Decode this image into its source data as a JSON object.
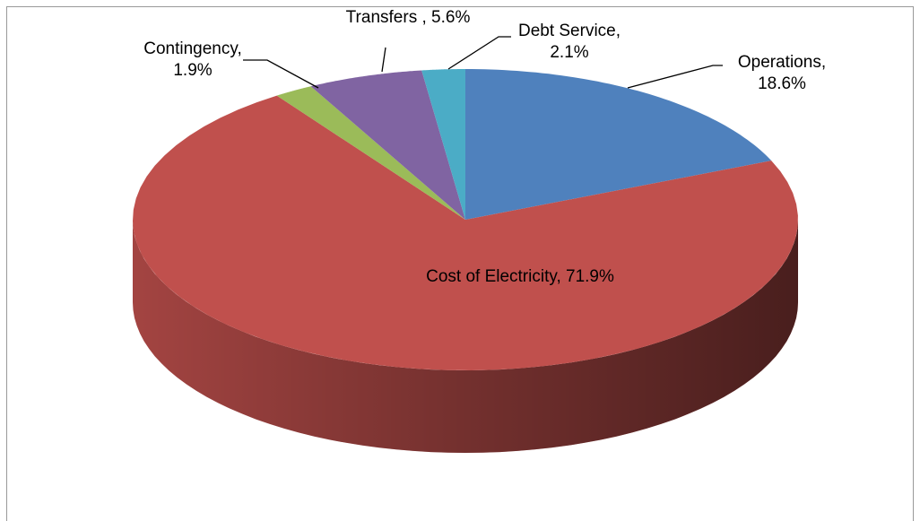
{
  "chart_data": {
    "type": "pie3d",
    "categories": [
      "Operations,",
      "Cost of Electricity,",
      "Contingency,",
      "Transfers ,",
      "Debt Service,"
    ],
    "values": [
      18.6,
      71.9,
      1.9,
      5.6,
      2.1
    ],
    "value_labels": [
      "18.6%",
      "71.9%",
      "1.9%",
      "5.6%",
      "2.1%"
    ],
    "colors": [
      "#4f81bd",
      "#c0504d",
      "#9bbb59",
      "#8064a2",
      "#4bacc6"
    ]
  }
}
